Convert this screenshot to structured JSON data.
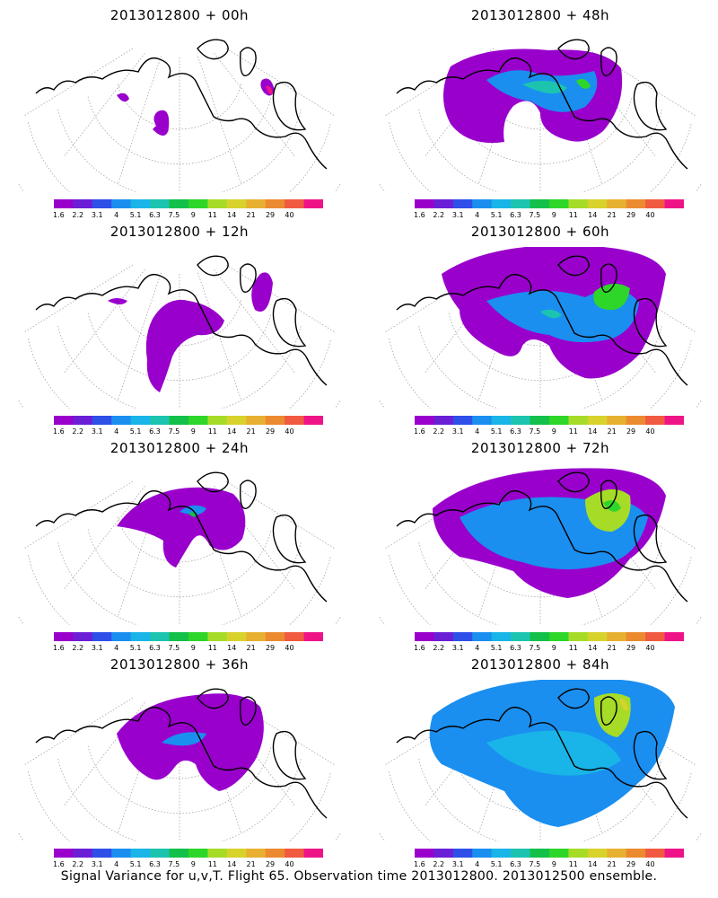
{
  "chart_data": [
    {
      "type": "heatmap",
      "title": "2013012800 + 00h",
      "forecast_hour": 0
    },
    {
      "type": "heatmap",
      "title": "2013012800 + 48h",
      "forecast_hour": 48
    },
    {
      "type": "heatmap",
      "title": "2013012800 + 12h",
      "forecast_hour": 12
    },
    {
      "type": "heatmap",
      "title": "2013012800 + 60h",
      "forecast_hour": 60
    },
    {
      "type": "heatmap",
      "title": "2013012800 + 24h",
      "forecast_hour": 24
    },
    {
      "type": "heatmap",
      "title": "2013012800 + 72h",
      "forecast_hour": 72
    },
    {
      "type": "heatmap",
      "title": "2013012800 + 36h",
      "forecast_hour": 36
    },
    {
      "type": "heatmap",
      "title": "2013012800 + 84h",
      "forecast_hour": 84
    }
  ],
  "colorbar": {
    "labels": [
      "1.6",
      "2.2",
      "3.1",
      "4",
      "5.1",
      "6.3",
      "7.5",
      "9",
      "11",
      "14",
      "21",
      "29",
      "40"
    ],
    "colors": [
      "#9900cc",
      "#6a1fd6",
      "#2e4fe8",
      "#1a8ff0",
      "#19b5e8",
      "#1cc4b0",
      "#12c04a",
      "#2ed62a",
      "#a6dc28",
      "#d8d22c",
      "#e8b030",
      "#ec8a30",
      "#f05a40",
      "#ee1488"
    ]
  },
  "caption": "Signal Variance for u,v,T. Flight 65. Observation time 2013012800. 2013012500 ensemble.",
  "panel_order": "left column: +00h, +12h, +24h, +36h; right column: +48h, +60h, +72h, +84h"
}
